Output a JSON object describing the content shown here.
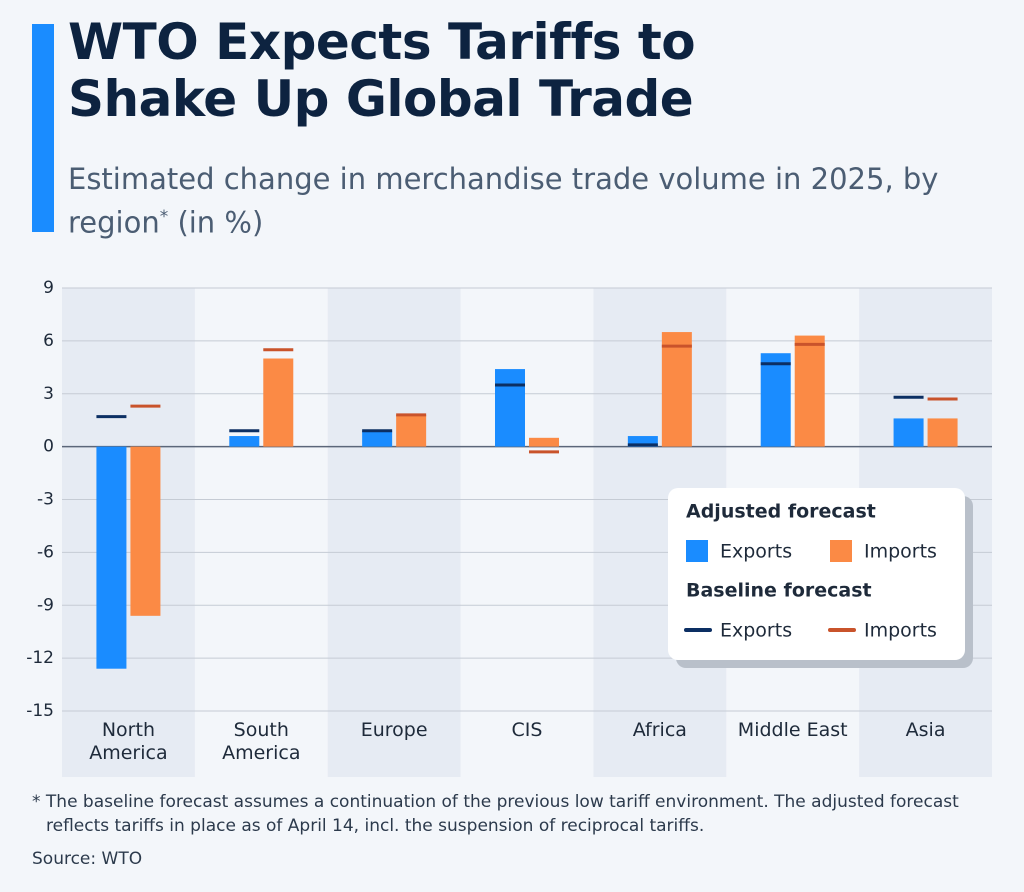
{
  "chart_data": {
    "type": "bar",
    "title": "WTO Expects Tariffs to Shake Up Global Trade",
    "subtitle": "Estimated change in merchandise trade volume in 2025, by region",
    "subtitle_mark": "*",
    "subtitle_unit": "(in %)",
    "categories": [
      "North America",
      "South America",
      "Europe",
      "CIS",
      "Africa",
      "Middle East",
      "Asia"
    ],
    "groups": [
      {
        "title": "Adjusted forecast",
        "style": "bar",
        "series": [
          {
            "name": "Exports",
            "color": "#1a8cff",
            "values": [
              -12.6,
              0.6,
              0.9,
              4.4,
              0.6,
              5.3,
              1.6
            ]
          },
          {
            "name": "Imports",
            "color": "#fb8a45",
            "values": [
              -9.6,
              5.0,
              1.8,
              0.5,
              6.5,
              6.3,
              1.6
            ]
          }
        ]
      },
      {
        "title": "Baseline forecast",
        "style": "marker",
        "series": [
          {
            "name": "Exports",
            "color": "#0c2f63",
            "values": [
              1.7,
              0.9,
              0.9,
              3.5,
              0.1,
              4.7,
              2.8
            ]
          },
          {
            "name": "Imports",
            "color": "#c9532b",
            "values": [
              2.3,
              5.5,
              1.8,
              -0.3,
              5.7,
              5.8,
              2.7
            ]
          }
        ]
      }
    ],
    "ylim": [
      -15,
      9
    ],
    "yticks": [
      9,
      6,
      3,
      0,
      -3,
      -6,
      -9,
      -12,
      -15
    ],
    "grid": true,
    "footnote": "* The baseline forecast assumes a continuation of the previous low tariff environment. The adjusted forecast reflects tariffs in place as of April 14, incl. the suspension of reciprocal tariffs.",
    "source": "Source: WTO"
  }
}
